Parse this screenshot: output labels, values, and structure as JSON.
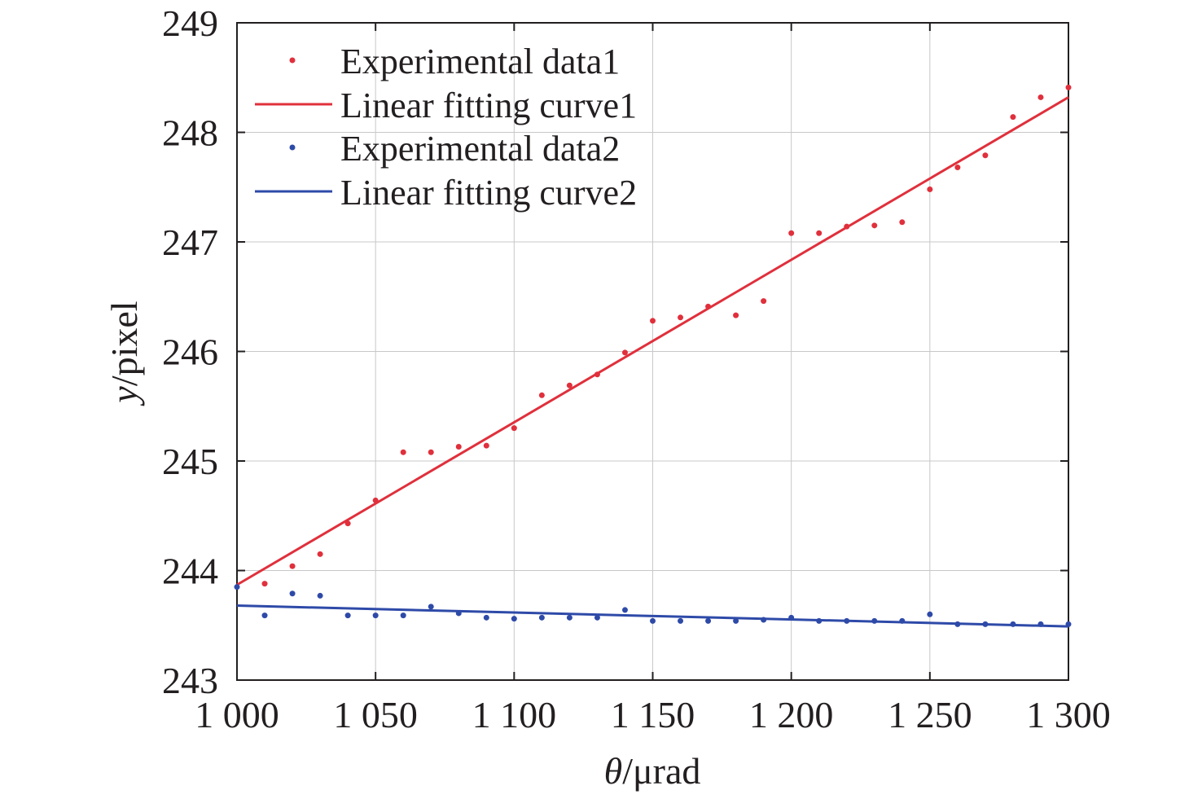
{
  "chart_data": {
    "type": "scatter",
    "title": "",
    "xlabel_italic": "θ",
    "xlabel_rest": "/μrad",
    "ylabel_italic": "y",
    "ylabel_rest": "/pixel",
    "xlim": [
      1000,
      1300
    ],
    "ylim": [
      243,
      249
    ],
    "xticks": [
      1000,
      1050,
      1100,
      1150,
      1200,
      1250,
      1300
    ],
    "xtick_labels": [
      "1 000",
      "1 050",
      "1 100",
      "1 150",
      "1 200",
      "1 250",
      "1 300"
    ],
    "yticks": [
      243,
      244,
      245,
      246,
      247,
      248,
      249
    ],
    "ytick_labels": [
      "243",
      "244",
      "245",
      "246",
      "247",
      "248",
      "249"
    ],
    "grid": true,
    "legend_position": "top-left",
    "x": [
      1000,
      1010,
      1020,
      1030,
      1040,
      1050,
      1060,
      1070,
      1080,
      1090,
      1100,
      1110,
      1120,
      1130,
      1140,
      1150,
      1160,
      1170,
      1180,
      1190,
      1200,
      1210,
      1220,
      1230,
      1240,
      1250,
      1260,
      1270,
      1280,
      1290,
      1300
    ],
    "series": [
      {
        "name": "Experimental data1",
        "kind": "points",
        "color": "#e0303c",
        "values": [
          null,
          243.88,
          244.04,
          244.15,
          244.43,
          244.64,
          245.08,
          245.08,
          245.13,
          245.14,
          245.3,
          245.6,
          245.69,
          245.79,
          245.99,
          246.28,
          246.31,
          246.41,
          246.33,
          246.46,
          247.08,
          247.08,
          247.14,
          247.15,
          247.18,
          247.48,
          247.68,
          247.79,
          248.14,
          248.32,
          248.41
        ]
      },
      {
        "name": "Linear fitting curve1",
        "kind": "line",
        "color": "#e0303c",
        "x": [
          1000,
          1300
        ],
        "values": [
          243.87,
          248.32
        ]
      },
      {
        "name": "Experimental data2",
        "kind": "points",
        "color": "#2e4aa8",
        "values": [
          243.85,
          243.59,
          243.79,
          243.77,
          243.59,
          243.59,
          243.59,
          243.67,
          243.61,
          243.57,
          243.56,
          243.57,
          243.57,
          243.57,
          243.64,
          243.54,
          243.54,
          243.54,
          243.54,
          243.55,
          243.57,
          243.54,
          243.54,
          243.54,
          243.54,
          243.6,
          243.51,
          243.51,
          243.51,
          243.51,
          243.51
        ]
      },
      {
        "name": "Linear fitting curve2",
        "kind": "line",
        "color": "#2e4aa8",
        "x": [
          1000,
          1300
        ],
        "values": [
          243.68,
          243.49
        ]
      }
    ]
  }
}
